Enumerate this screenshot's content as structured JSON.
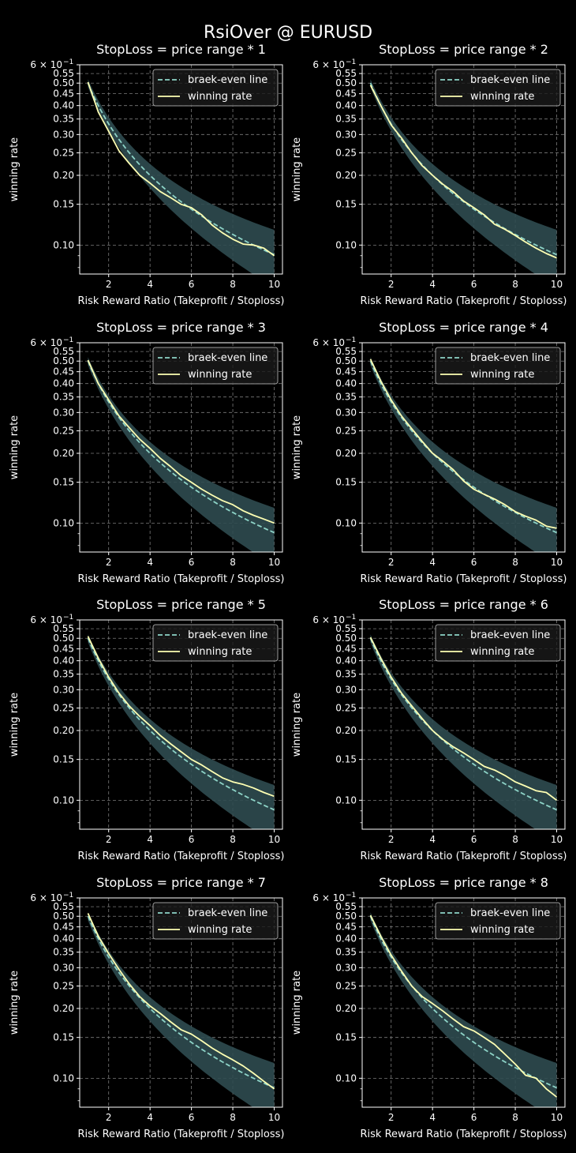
{
  "figure": {
    "title": "RsiOver @ EURUSD",
    "background": "#000000",
    "colors": {
      "breakeven": "#8dd3c7",
      "winning": "#feffb3",
      "band": "#2f4b50",
      "grid": "#7a7a7a",
      "axes": "#ffffff"
    }
  },
  "chart_data": [
    {
      "type": "line",
      "title": "StopLoss = price range * 1",
      "xlabel": "Risk Reward Ratio (Takeprofit / Stoploss)",
      "ylabel": "winning rate",
      "xlim": [
        0.6,
        10.4
      ],
      "ylim": [
        0.075,
        0.6
      ],
      "yscale": "log",
      "grid": true,
      "legend": "top-right",
      "xticks": [
        "2",
        "4",
        "6",
        "8",
        "10"
      ],
      "yticks": [
        "0.10",
        "0.15",
        "0.20",
        "0.25",
        "0.30",
        "0.35",
        "0.40",
        "0.45",
        "0.50",
        "0.55"
      ],
      "ytop_label": "6 × 10",
      "ytop_label_exp": "−1",
      "legend_entries": [
        "braek-even line",
        "winning rate"
      ],
      "band_rel_width": [
        0.04,
        0.28
      ],
      "series": [
        {
          "name": "braek-even line",
          "style": "dashed",
          "formula": "1/(1+x)",
          "x": [
            1,
            10
          ]
        },
        {
          "name": "winning rate",
          "style": "solid",
          "x": [
            1,
            1.5,
            2,
            2.5,
            3,
            3.5,
            4,
            4.5,
            5,
            5.5,
            6,
            6.5,
            7,
            7.5,
            8,
            8.5,
            9,
            9.5,
            10
          ],
          "values": [
            0.505,
            0.375,
            0.31,
            0.255,
            0.225,
            0.2,
            0.185,
            0.17,
            0.16,
            0.15,
            0.145,
            0.135,
            0.122,
            0.113,
            0.106,
            0.101,
            0.1,
            0.097,
            0.09
          ]
        }
      ]
    },
    {
      "type": "line",
      "title": "StopLoss = price range * 2",
      "xlabel": "Risk Reward Ratio (Takeprofit / Stoploss)",
      "ylabel": "winning rate",
      "xlim": [
        0.6,
        10.4
      ],
      "ylim": [
        0.075,
        0.6
      ],
      "yscale": "log",
      "grid": true,
      "legend": "top-right",
      "xticks": [
        "2",
        "4",
        "6",
        "8",
        "10"
      ],
      "yticks": [
        "0.10",
        "0.15",
        "0.20",
        "0.25",
        "0.30",
        "0.35",
        "0.40",
        "0.45",
        "0.50",
        "0.55"
      ],
      "ytop_label": "6 × 10",
      "ytop_label_exp": "−1",
      "legend_entries": [
        "braek-even line",
        "winning rate"
      ],
      "band_rel_width": [
        0.04,
        0.28
      ],
      "series": [
        {
          "name": "braek-even line",
          "style": "dashed",
          "formula": "1/(1+x)",
          "x": [
            1,
            10
          ]
        },
        {
          "name": "winning rate",
          "style": "solid",
          "x": [
            1,
            1.5,
            2,
            2.5,
            3,
            3.5,
            4,
            4.5,
            5,
            5.5,
            6,
            6.5,
            7,
            7.5,
            8,
            8.5,
            9,
            9.5,
            10
          ],
          "values": [
            0.49,
            0.4,
            0.33,
            0.29,
            0.25,
            0.22,
            0.2,
            0.183,
            0.17,
            0.155,
            0.145,
            0.135,
            0.123,
            0.117,
            0.11,
            0.103,
            0.097,
            0.092,
            0.088
          ]
        }
      ]
    },
    {
      "type": "line",
      "title": "StopLoss = price range * 3",
      "xlabel": "Risk Reward Ratio (Takeprofit / Stoploss)",
      "ylabel": "winning rate",
      "xlim": [
        0.6,
        10.4
      ],
      "ylim": [
        0.075,
        0.6
      ],
      "yscale": "log",
      "grid": true,
      "legend": "top-right",
      "xticks": [
        "2",
        "4",
        "6",
        "8",
        "10"
      ],
      "yticks": [
        "0.10",
        "0.15",
        "0.20",
        "0.25",
        "0.30",
        "0.35",
        "0.40",
        "0.45",
        "0.50",
        "0.55"
      ],
      "ytop_label": "6 × 10",
      "ytop_label_exp": "−1",
      "legend_entries": [
        "braek-even line",
        "winning rate"
      ],
      "band_rel_width": [
        0.04,
        0.28
      ],
      "series": [
        {
          "name": "braek-even line",
          "style": "dashed",
          "formula": "1/(1+x)",
          "x": [
            1,
            10
          ]
        },
        {
          "name": "winning rate",
          "style": "solid",
          "x": [
            1,
            1.5,
            2,
            2.5,
            3,
            3.5,
            4,
            4.5,
            5,
            5.5,
            6,
            6.5,
            7,
            7.5,
            8,
            8.5,
            9,
            9.5,
            10
          ],
          "values": [
            0.505,
            0.4,
            0.34,
            0.29,
            0.258,
            0.23,
            0.21,
            0.19,
            0.175,
            0.16,
            0.15,
            0.14,
            0.132,
            0.125,
            0.12,
            0.113,
            0.108,
            0.104,
            0.1
          ]
        }
      ]
    },
    {
      "type": "line",
      "title": "StopLoss = price range * 4",
      "xlabel": "Risk Reward Ratio (Takeprofit / Stoploss)",
      "ylabel": "winning rate",
      "xlim": [
        0.6,
        10.4
      ],
      "ylim": [
        0.075,
        0.6
      ],
      "yscale": "log",
      "grid": true,
      "legend": "top-right",
      "xticks": [
        "2",
        "4",
        "6",
        "8",
        "10"
      ],
      "yticks": [
        "0.10",
        "0.15",
        "0.20",
        "0.25",
        "0.30",
        "0.35",
        "0.40",
        "0.45",
        "0.50",
        "0.55"
      ],
      "ytop_label": "6 × 10",
      "ytop_label_exp": "−1",
      "legend_entries": [
        "braek-even line",
        "winning rate"
      ],
      "band_rel_width": [
        0.04,
        0.28
      ],
      "series": [
        {
          "name": "braek-even line",
          "style": "dashed",
          "formula": "1/(1+x)",
          "x": [
            1,
            10
          ]
        },
        {
          "name": "winning rate",
          "style": "solid",
          "x": [
            1,
            1.5,
            2,
            2.5,
            3,
            3.5,
            4,
            4.5,
            5,
            5.5,
            6,
            6.5,
            7,
            7.5,
            8,
            8.5,
            9,
            9.5,
            10
          ],
          "values": [
            0.51,
            0.41,
            0.34,
            0.29,
            0.255,
            0.225,
            0.2,
            0.185,
            0.17,
            0.152,
            0.14,
            0.133,
            0.127,
            0.12,
            0.112,
            0.107,
            0.103,
            0.097,
            0.095
          ]
        }
      ]
    },
    {
      "type": "line",
      "title": "StopLoss = price range * 5",
      "xlabel": "Risk Reward Ratio (Takeprofit / Stoploss)",
      "ylabel": "winning rate",
      "xlim": [
        0.6,
        10.4
      ],
      "ylim": [
        0.075,
        0.6
      ],
      "yscale": "log",
      "grid": true,
      "legend": "top-right",
      "xticks": [
        "2",
        "4",
        "6",
        "8",
        "10"
      ],
      "yticks": [
        "0.10",
        "0.15",
        "0.20",
        "0.25",
        "0.30",
        "0.35",
        "0.40",
        "0.45",
        "0.50",
        "0.55"
      ],
      "ytop_label": "6 × 10",
      "ytop_label_exp": "−1",
      "legend_entries": [
        "braek-even line",
        "winning rate"
      ],
      "band_rel_width": [
        0.04,
        0.28
      ],
      "series": [
        {
          "name": "braek-even line",
          "style": "dashed",
          "formula": "1/(1+x)",
          "x": [
            1,
            10
          ]
        },
        {
          "name": "winning rate",
          "style": "solid",
          "x": [
            1,
            1.5,
            2,
            2.5,
            3,
            3.5,
            4,
            4.5,
            5,
            5.5,
            6,
            6.5,
            7,
            7.5,
            8,
            8.5,
            9,
            9.5,
            10
          ],
          "values": [
            0.51,
            0.41,
            0.34,
            0.29,
            0.255,
            0.23,
            0.21,
            0.19,
            0.175,
            0.162,
            0.15,
            0.142,
            0.133,
            0.125,
            0.12,
            0.117,
            0.113,
            0.108,
            0.104
          ]
        }
      ]
    },
    {
      "type": "line",
      "title": "StopLoss = price range * 6",
      "xlabel": "Risk Reward Ratio (Takeprofit / Stoploss)",
      "ylabel": "winning rate",
      "xlim": [
        0.6,
        10.4
      ],
      "ylim": [
        0.075,
        0.6
      ],
      "yscale": "log",
      "grid": true,
      "legend": "top-right",
      "xticks": [
        "2",
        "4",
        "6",
        "8",
        "10"
      ],
      "yticks": [
        "0.10",
        "0.15",
        "0.20",
        "0.25",
        "0.30",
        "0.35",
        "0.40",
        "0.45",
        "0.50",
        "0.55"
      ],
      "ytop_label": "6 × 10",
      "ytop_label_exp": "−1",
      "legend_entries": [
        "braek-even line",
        "winning rate"
      ],
      "band_rel_width": [
        0.04,
        0.28
      ],
      "series": [
        {
          "name": "braek-even line",
          "style": "dashed",
          "formula": "1/(1+x)",
          "x": [
            1,
            10
          ]
        },
        {
          "name": "winning rate",
          "style": "solid",
          "x": [
            1,
            1.5,
            2,
            2.5,
            3,
            3.5,
            4,
            4.5,
            5,
            5.5,
            6,
            6.5,
            7,
            7.5,
            8,
            8.5,
            9,
            9.5,
            10
          ],
          "values": [
            0.505,
            0.41,
            0.34,
            0.29,
            0.255,
            0.225,
            0.2,
            0.183,
            0.17,
            0.16,
            0.15,
            0.14,
            0.135,
            0.128,
            0.12,
            0.115,
            0.11,
            0.108,
            0.1
          ]
        }
      ]
    },
    {
      "type": "line",
      "title": "StopLoss = price range * 7",
      "xlabel": "Risk Reward Ratio (Takeprofit / Stoploss)",
      "ylabel": "winning rate",
      "xlim": [
        0.6,
        10.4
      ],
      "ylim": [
        0.075,
        0.6
      ],
      "yscale": "log",
      "grid": true,
      "legend": "top-right",
      "xticks": [
        "2",
        "4",
        "6",
        "8",
        "10"
      ],
      "yticks": [
        "0.10",
        "0.15",
        "0.20",
        "0.25",
        "0.30",
        "0.35",
        "0.40",
        "0.45",
        "0.50",
        "0.55"
      ],
      "ytop_label": "6 × 10",
      "ytop_label_exp": "−1",
      "legend_entries": [
        "braek-even line",
        "winning rate"
      ],
      "band_rel_width": [
        0.04,
        0.28
      ],
      "series": [
        {
          "name": "braek-even line",
          "style": "dashed",
          "formula": "1/(1+x)",
          "x": [
            1,
            10
          ]
        },
        {
          "name": "winning rate",
          "style": "solid",
          "x": [
            1,
            1.5,
            2,
            2.5,
            3,
            3.5,
            4,
            4.5,
            5,
            5.5,
            6,
            6.5,
            7,
            7.5,
            8,
            8.5,
            9,
            9.5,
            10
          ],
          "values": [
            0.515,
            0.41,
            0.345,
            0.295,
            0.255,
            0.225,
            0.205,
            0.19,
            0.175,
            0.162,
            0.155,
            0.145,
            0.135,
            0.127,
            0.12,
            0.113,
            0.105,
            0.097,
            0.09
          ]
        }
      ]
    },
    {
      "type": "line",
      "title": "StopLoss = price range * 8",
      "xlabel": "Risk Reward Ratio (Takeprofit / Stoploss)",
      "ylabel": "winning rate",
      "xlim": [
        0.6,
        10.4
      ],
      "ylim": [
        0.075,
        0.6
      ],
      "yscale": "log",
      "grid": true,
      "legend": "top-right",
      "xticks": [
        "2",
        "4",
        "6",
        "8",
        "10"
      ],
      "yticks": [
        "0.10",
        "0.15",
        "0.20",
        "0.25",
        "0.30",
        "0.35",
        "0.40",
        "0.45",
        "0.50",
        "0.55"
      ],
      "ytop_label": "6 × 10",
      "ytop_label_exp": "−1",
      "legend_entries": [
        "braek-even line",
        "winning rate"
      ],
      "band_rel_width": [
        0.04,
        0.28
      ],
      "series": [
        {
          "name": "braek-even line",
          "style": "dashed",
          "formula": "1/(1+x)",
          "x": [
            1,
            10
          ]
        },
        {
          "name": "winning rate",
          "style": "solid",
          "x": [
            1,
            1.5,
            2,
            2.5,
            3,
            3.5,
            4,
            4.5,
            5,
            5.5,
            6,
            6.5,
            7,
            7.5,
            8,
            8.5,
            9,
            9.5,
            10
          ],
          "values": [
            0.505,
            0.41,
            0.34,
            0.29,
            0.25,
            0.225,
            0.21,
            0.195,
            0.18,
            0.167,
            0.16,
            0.15,
            0.14,
            0.127,
            0.115,
            0.103,
            0.1,
            0.09,
            0.083
          ]
        }
      ]
    }
  ]
}
